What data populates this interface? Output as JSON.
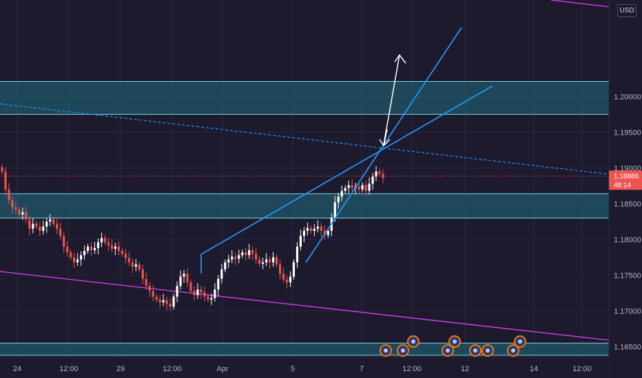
{
  "currency": "USD",
  "chart_data": {
    "type": "candlestick",
    "symbol_quote": "USD",
    "last_price": "1.18886",
    "countdown": "48:14",
    "y_ticks": [
      "1.20000",
      "1.19500",
      "1.19000",
      "1.18500",
      "1.18000",
      "1.17500",
      "1.17000",
      "1.16500"
    ],
    "x_ticks": [
      "24",
      "12:00",
      "29",
      "12:00",
      "Apr",
      "5",
      "7",
      "12:00",
      "12",
      "14",
      "12:00"
    ],
    "ylim": [
      1.1635,
      1.2135
    ],
    "resistance_zone": [
      1.1975,
      1.2021
    ],
    "support_zone": [
      1.183,
      1.1864
    ],
    "bottom_zone": [
      1.1638,
      1.1655
    ],
    "channel_line_color": "#e040fb",
    "trend_line_color": "#2196f3",
    "zone_color": "#1f6f80",
    "up_color": "#ffffff",
    "down_color": "#ef5350",
    "price_series": [
      1.1895,
      1.187,
      1.1855,
      1.1845,
      1.1842,
      1.1835,
      1.1838,
      1.1828,
      1.1815,
      1.1822,
      1.1818,
      1.1812,
      1.1818,
      1.1825,
      1.1828,
      1.1822,
      1.1815,
      1.1805,
      1.179,
      1.1782,
      1.1775,
      1.1768,
      1.1772,
      1.1778,
      1.1784,
      1.179,
      1.1785,
      1.1788,
      1.1796,
      1.1802,
      1.1796,
      1.1792,
      1.1787,
      1.179,
      1.1784,
      1.178,
      1.1774,
      1.1768,
      1.1762,
      1.1765,
      1.1758,
      1.1745,
      1.1735,
      1.1728,
      1.172,
      1.1716,
      1.1712,
      1.1715,
      1.171,
      1.1706,
      1.172,
      1.1735,
      1.1748,
      1.1752,
      1.174,
      1.1728,
      1.1722,
      1.173,
      1.1726,
      1.172,
      1.1716,
      1.1718,
      1.173,
      1.1745,
      1.1758,
      1.1768,
      1.1772,
      1.1776,
      1.1773,
      1.1778,
      1.1782,
      1.1778,
      1.1785,
      1.178,
      1.1772,
      1.1766,
      1.1768,
      1.1772,
      1.1768,
      1.1775,
      1.1765,
      1.1752,
      1.1744,
      1.174,
      1.1748,
      1.1768,
      1.179,
      1.1805,
      1.1812,
      1.1816,
      1.1812,
      1.1815,
      1.1818,
      1.1812,
      1.1806,
      1.1812,
      1.183,
      1.1852,
      1.186,
      1.1868,
      1.1872,
      1.1876,
      1.1872,
      1.1874,
      1.187,
      1.1876,
      1.1868,
      1.1878,
      1.1888,
      1.1895,
      1.1892,
      1.1886
    ]
  }
}
